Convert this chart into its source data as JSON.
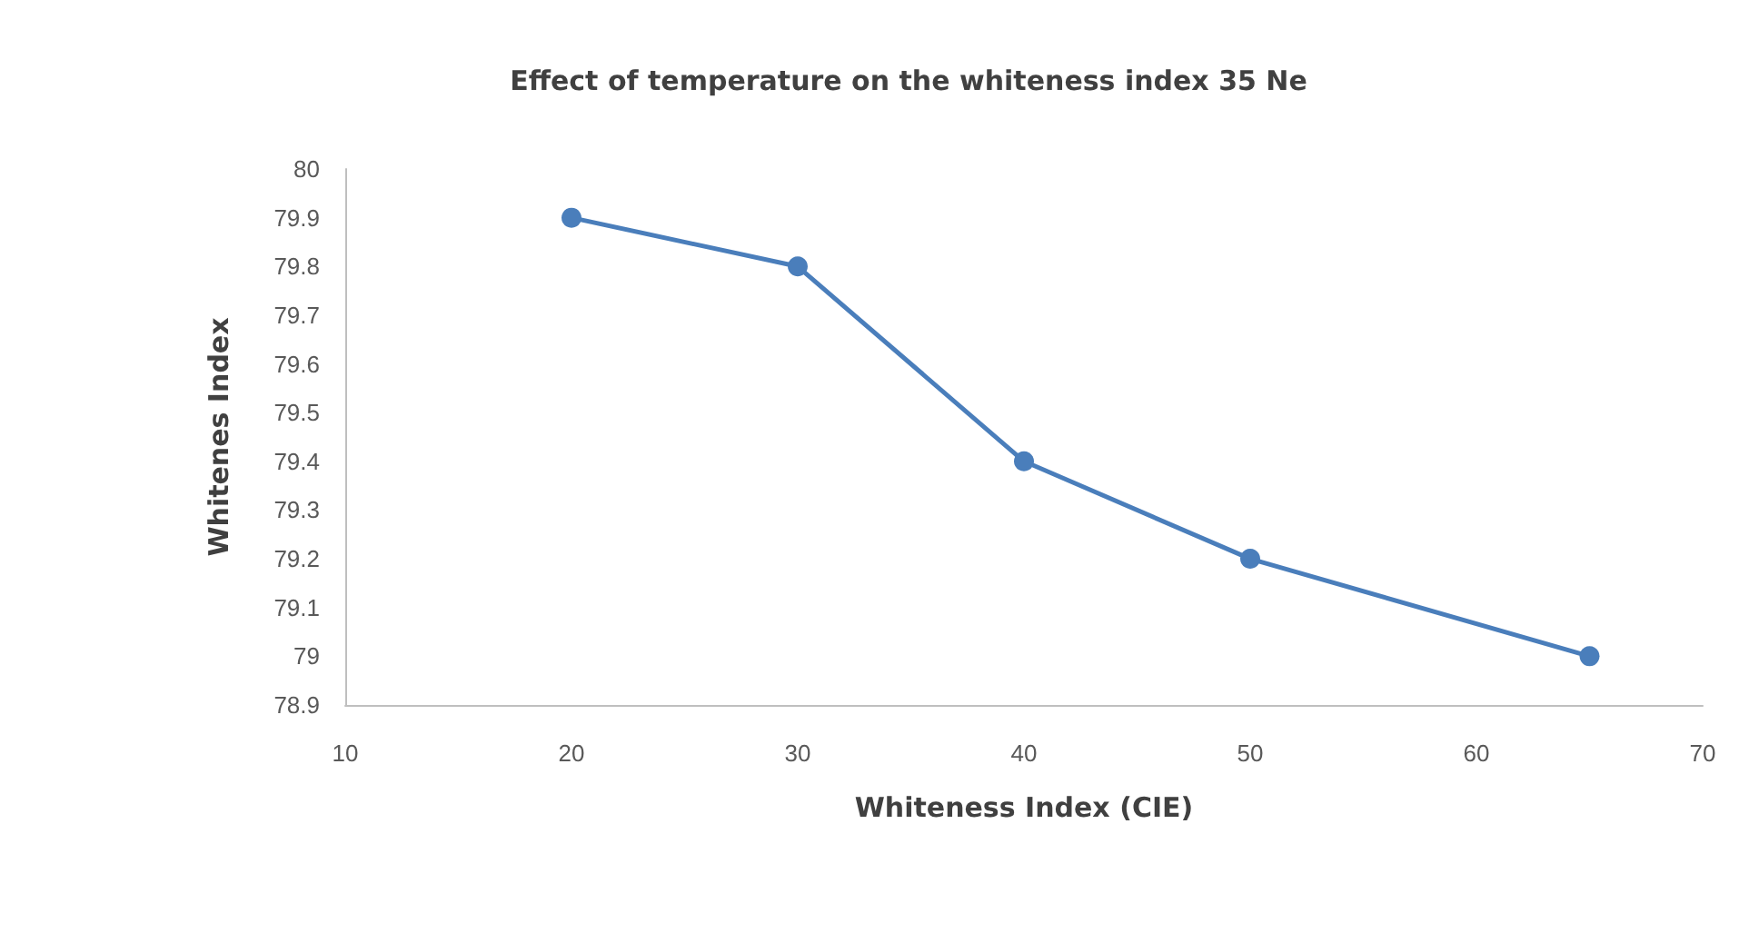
{
  "chart_data": {
    "type": "line",
    "title": "Effect of temperature on the whiteness index 35 Ne",
    "xlabel": "Whiteness Index (CIE)",
    "ylabel": "Whitenes Index",
    "x": [
      20,
      30,
      40,
      50,
      65
    ],
    "series": [
      {
        "color": "#4a7ebb",
        "values": [
          79.9,
          79.8,
          79.4,
          79.2,
          79.0
        ]
      }
    ],
    "xlim": [
      10,
      70
    ],
    "xticks": [
      10,
      20,
      30,
      40,
      50,
      60,
      70
    ],
    "ylim": [
      78.9,
      80
    ],
    "yticks": [
      78.9,
      79,
      79.1,
      79.2,
      79.3,
      79.4,
      79.5,
      79.6,
      79.7,
      79.8,
      79.9,
      80
    ],
    "grid": false,
    "marker": "circle",
    "line_style": "solid"
  }
}
